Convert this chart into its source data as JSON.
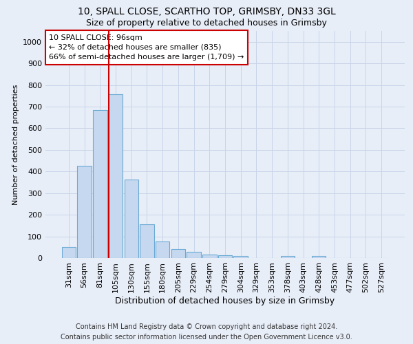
{
  "title1": "10, SPALL CLOSE, SCARTHO TOP, GRIMSBY, DN33 3GL",
  "title2": "Size of property relative to detached houses in Grimsby",
  "xlabel": "Distribution of detached houses by size in Grimsby",
  "ylabel": "Number of detached properties",
  "categories": [
    "31sqm",
    "56sqm",
    "81sqm",
    "105sqm",
    "130sqm",
    "155sqm",
    "180sqm",
    "205sqm",
    "229sqm",
    "254sqm",
    "279sqm",
    "304sqm",
    "329sqm",
    "353sqm",
    "378sqm",
    "403sqm",
    "428sqm",
    "453sqm",
    "477sqm",
    "502sqm",
    "527sqm"
  ],
  "values": [
    50,
    425,
    685,
    757,
    362,
    155,
    75,
    42,
    30,
    17,
    12,
    9,
    0,
    0,
    9,
    0,
    9,
    0,
    0,
    0,
    0
  ],
  "bar_color": "#c5d8ef",
  "bar_edge_color": "#6aaad4",
  "highlight_line_color": "#cc0000",
  "annotation_text": "10 SPALL CLOSE: 96sqm\n← 32% of detached houses are smaller (835)\n66% of semi-detached houses are larger (1,709) →",
  "annotation_box_color": "#ffffff",
  "annotation_box_edge_color": "#cc0000",
  "ylim": [
    0,
    1050
  ],
  "yticks": [
    0,
    100,
    200,
    300,
    400,
    500,
    600,
    700,
    800,
    900,
    1000
  ],
  "footer_line1": "Contains HM Land Registry data © Crown copyright and database right 2024.",
  "footer_line2": "Contains public sector information licensed under the Open Government Licence v3.0.",
  "background_color": "#e8eef8",
  "plot_background_color": "#e8eef8",
  "grid_color": "#c8d4e8",
  "title1_fontsize": 10,
  "title2_fontsize": 9,
  "xlabel_fontsize": 9,
  "ylabel_fontsize": 8,
  "tick_fontsize": 8,
  "annotation_fontsize": 8,
  "footer_fontsize": 7
}
